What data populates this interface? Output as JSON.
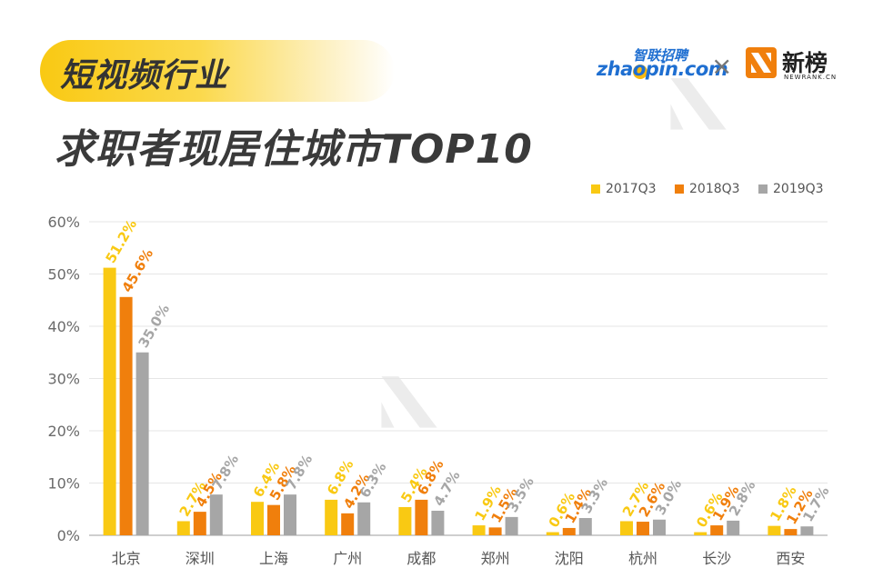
{
  "header": {
    "tag": "短视频行业",
    "title": "求职者现居住城市TOP10"
  },
  "logos": {
    "zhaopin_cn": "智联招聘",
    "zhaopin": "zhaopin.com",
    "times": "×",
    "newrank": "新榜",
    "newrank_sub": "NEWRANK.CN"
  },
  "colors": {
    "s2017": "#f9c913",
    "s2018": "#f07f0c",
    "s2019": "#a6a6a6",
    "axis": "#bfbfbf",
    "grid": "#e6e6e6",
    "tick": "#6b6b6b"
  },
  "chart_data": {
    "type": "bar",
    "title": "求职者现居住城市TOP10",
    "categories": [
      "北京",
      "深圳",
      "上海",
      "广州",
      "成都",
      "郑州",
      "沈阳",
      "杭州",
      "长沙",
      "西安"
    ],
    "series": [
      {
        "name": "2017Q3",
        "color": "#f9c913",
        "values": [
          51.2,
          2.7,
          6.4,
          6.8,
          5.4,
          1.9,
          0.6,
          2.7,
          0.6,
          1.8
        ],
        "labels": [
          "51.2%",
          "2.7%",
          "6.4%",
          "6.8%",
          "5.4%",
          "1.9%",
          "0.6%",
          "2.7%",
          "0.6%",
          "1.8%"
        ]
      },
      {
        "name": "2018Q3",
        "color": "#f07f0c",
        "values": [
          45.6,
          4.5,
          5.8,
          4.2,
          6.8,
          1.5,
          1.4,
          2.6,
          1.9,
          1.2
        ],
        "labels": [
          "45.6%",
          "4.5%",
          "5.8%",
          "4.2%",
          "6.8%",
          "1.5%",
          "1.4%",
          "2.6%",
          "1.9%",
          "1.2%"
        ]
      },
      {
        "name": "2019Q3",
        "color": "#a6a6a6",
        "values": [
          35.0,
          7.8,
          7.8,
          6.3,
          4.7,
          3.5,
          3.3,
          3.0,
          2.8,
          1.7
        ],
        "labels": [
          "35.0%",
          "7.8%",
          "7.8%",
          "6.3%",
          "4.7%",
          "3.5%",
          "3.3%",
          "3.0%",
          "2.8%",
          "1.7%"
        ]
      }
    ],
    "y_ticks": [
      "0%",
      "10%",
      "20%",
      "30%",
      "40%",
      "50%",
      "60%"
    ],
    "ylim": [
      0,
      60
    ],
    "grid": true,
    "legend": "top-right"
  }
}
